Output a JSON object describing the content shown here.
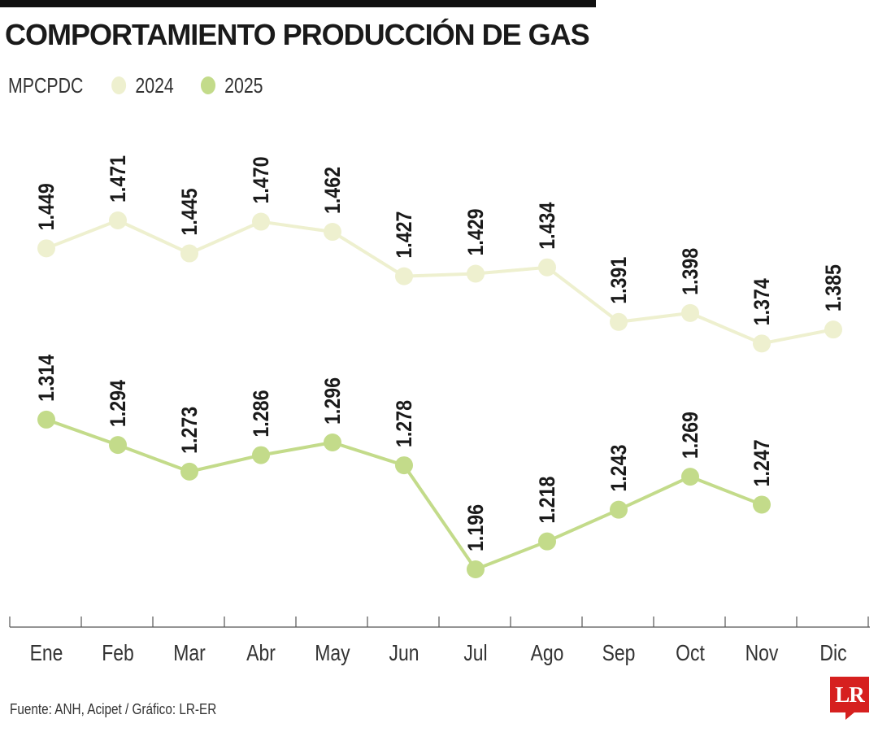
{
  "header": {
    "title": "COMPORTAMIENTO PRODUCCIÓN DE GAS"
  },
  "legend": {
    "unit": "MPCPDC",
    "items": [
      {
        "label": "2024",
        "color": "#eef0cf"
      },
      {
        "label": "2025",
        "color": "#c3db8a"
      }
    ]
  },
  "footer": {
    "source": "Fuente: ANH, Acipet / Gráfico: LR-ER",
    "logo": "LR"
  },
  "chart_data": {
    "type": "line",
    "categories": [
      "Ene",
      "Feb",
      "Mar",
      "Abr",
      "May",
      "Jun",
      "Jul",
      "Ago",
      "Sep",
      "Oct",
      "Nov",
      "Dic"
    ],
    "series": [
      {
        "name": "2024",
        "color": "#eef0cf",
        "values": [
          1449,
          1471,
          1445,
          1470,
          1462,
          1427,
          1429,
          1434,
          1391,
          1398,
          1374,
          1385
        ],
        "labels": [
          "1.449",
          "1.471",
          "1.445",
          "1.470",
          "1.462",
          "1.427",
          "1.429",
          "1.434",
          "1.391",
          "1.398",
          "1.374",
          "1.385"
        ]
      },
      {
        "name": "2025",
        "color": "#c3db8a",
        "values": [
          1314,
          1294,
          1273,
          1286,
          1296,
          1278,
          1196,
          1218,
          1243,
          1269,
          1247,
          null
        ],
        "labels": [
          "1.314",
          "1.294",
          "1.273",
          "1.286",
          "1.296",
          "1.278",
          "1.196",
          "1.218",
          "1.243",
          "1.269",
          "1.247",
          null
        ]
      }
    ],
    "grid": false,
    "legend_position": "top-left"
  }
}
